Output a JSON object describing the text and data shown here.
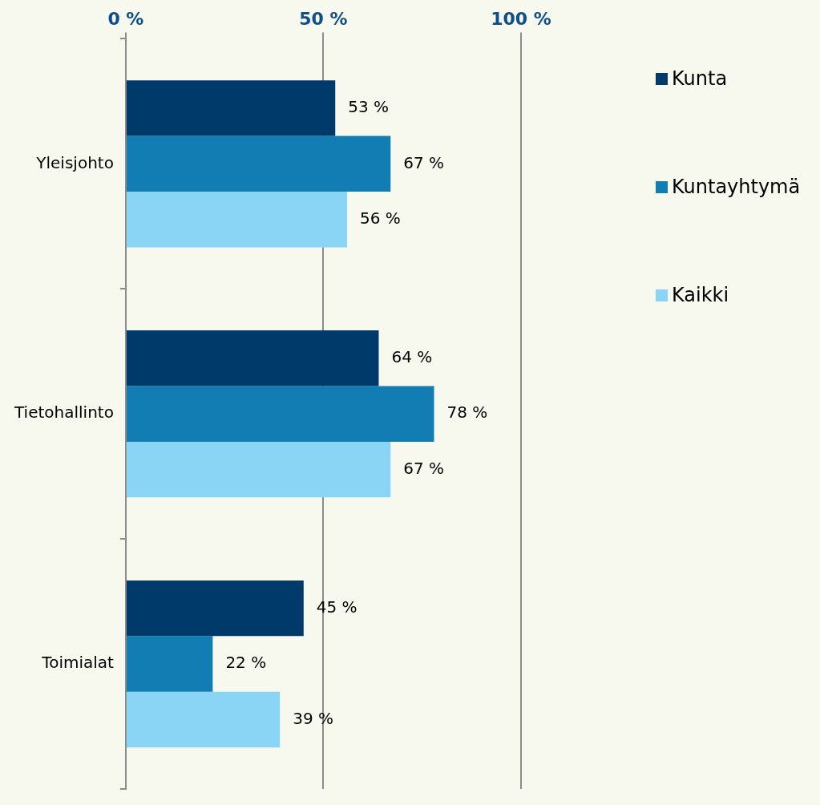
{
  "chart_data": {
    "type": "bar",
    "orientation": "horizontal",
    "categories": [
      "Yleisjohto",
      "Tietohallinto",
      "Toimialat"
    ],
    "series": [
      {
        "name": "Kunta",
        "color": "#003a6b",
        "values": [
          53,
          64,
          45
        ],
        "value_labels": [
          "53 %",
          "64 %",
          "45 %"
        ]
      },
      {
        "name": "Kuntayhtymä",
        "color": "#127db3",
        "values": [
          67,
          78,
          22
        ],
        "value_labels": [
          "67 %",
          "78 %",
          "22 %"
        ]
      },
      {
        "name": "Kaikki",
        "color": "#8ad4f5",
        "values": [
          56,
          67,
          39
        ],
        "value_labels": [
          "56 %",
          "67 %",
          "39 %"
        ]
      }
    ],
    "xlim": [
      0,
      100
    ],
    "xticks": [
      {
        "value": 0,
        "label": "0 %"
      },
      {
        "value": 50,
        "label": "50 %"
      },
      {
        "value": 100,
        "label": "100 %"
      }
    ],
    "grid": "x",
    "legend": "right"
  }
}
